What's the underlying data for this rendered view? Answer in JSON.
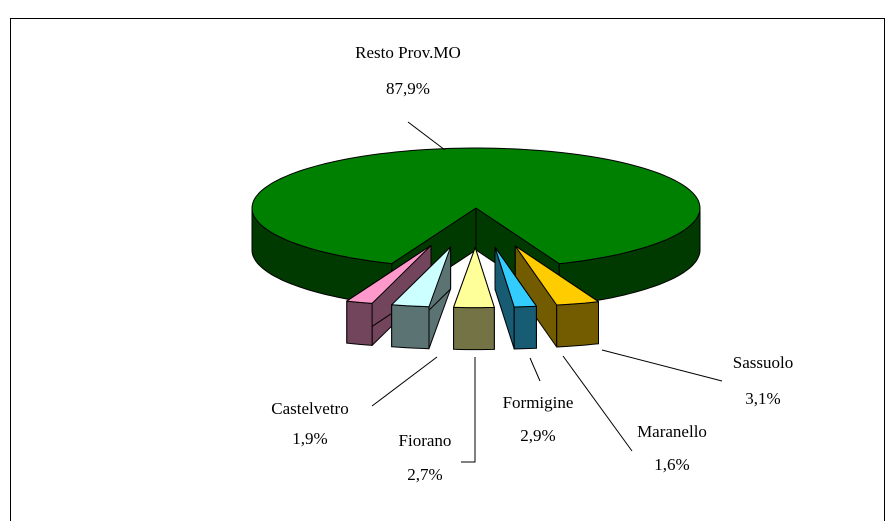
{
  "chart_data": {
    "type": "pie",
    "categories": [
      "Resto Prov.MO",
      "Castelvetro",
      "Fiorano",
      "Formigine",
      "Maranello",
      "Sassuolo"
    ],
    "values": [
      87.9,
      1.9,
      2.7,
      2.9,
      1.6,
      3.1
    ],
    "value_labels": [
      "87,9%",
      "1,9%",
      "2,7%",
      "2,9%",
      "1,6%",
      "3,1%"
    ],
    "colors": [
      "#008000",
      "#ff99cc",
      "#ccffff",
      "#ffff99",
      "#33ccff",
      "#ffcc00"
    ]
  }
}
